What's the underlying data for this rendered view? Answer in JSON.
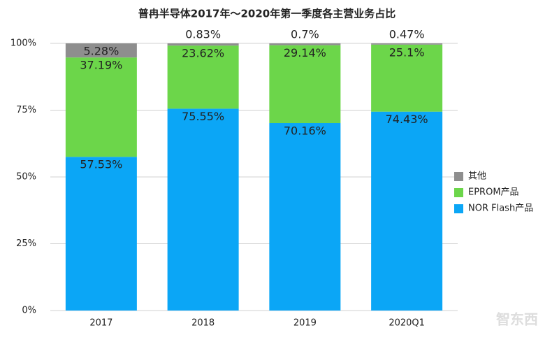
{
  "chart_data": {
    "type": "stacked_bar",
    "title": "普冉半导体2017年～2020年第一季度各主营业务占比",
    "categories": [
      "2017",
      "2018",
      "2019",
      "2020Q1"
    ],
    "series": [
      {
        "name": "NOR Flash产品",
        "color": "#0ba6f6",
        "values": [
          57.53,
          75.55,
          70.16,
          74.43
        ],
        "value_labels": [
          "57.53%",
          "75.55%",
          "70.16%",
          "74.43%"
        ]
      },
      {
        "name": "EPROM产品",
        "color": "#6cd64a",
        "values": [
          37.19,
          23.62,
          29.14,
          25.1
        ],
        "value_labels": [
          "37.19%",
          "23.62%",
          "29.14%",
          "25.1%"
        ]
      },
      {
        "name": "其他",
        "color": "#8e8e8e",
        "values": [
          5.28,
          0.83,
          0.7,
          0.47
        ],
        "value_labels": [
          "5.28%",
          "0.83%",
          "0.7%",
          "0.47%"
        ]
      }
    ],
    "ylim": [
      0,
      100
    ],
    "yticks": [
      {
        "value": 0,
        "label": "0%"
      },
      {
        "value": 25,
        "label": "25%"
      },
      {
        "value": 50,
        "label": "50%"
      },
      {
        "value": 75,
        "label": "75%"
      },
      {
        "value": 100,
        "label": "100%"
      }
    ],
    "grid": true,
    "legend": "right",
    "watermark": "智东西"
  }
}
